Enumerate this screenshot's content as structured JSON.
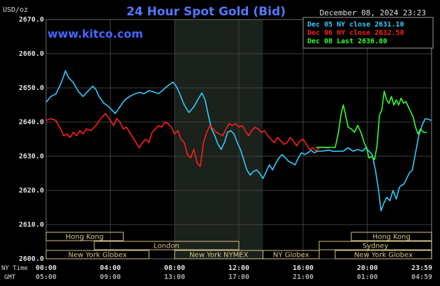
{
  "header": {
    "title": "24 Hour Spot Gold (Bid)",
    "watermark": "www.kitco.com",
    "y_unit": "USD/oz",
    "timestamp": "December 08, 2024 23:23"
  },
  "legend": [
    {
      "label": "Dec 05 NY close 2631.10",
      "color": "#33ccff"
    },
    {
      "label": "Dec 06 NY close 2632.50",
      "color": "#ff1f1f"
    },
    {
      "label": "Dec 08 Last 2636.80",
      "color": "#33ff33"
    }
  ],
  "time_rows": {
    "ny_label": "NY Time",
    "gmt_label": "GMT"
  },
  "sessions": [
    {
      "label": "Hong Kong",
      "start_hour": 0.0,
      "end_hour": 4.8
    },
    {
      "label": "London",
      "start_hour": 3.0,
      "end_hour": 12.0
    },
    {
      "label": "New York Globex",
      "start_hour": 0.0,
      "end_hour": 6.4
    },
    {
      "label": "New York NYMEX",
      "start_hour": 8.0,
      "end_hour": 13.5
    },
    {
      "label": "NY Globex",
      "start_hour": 13.5,
      "end_hour": 17.0
    },
    {
      "label": "Hong Kong",
      "start_hour": 19.0,
      "end_hour": 24.0
    },
    {
      "label": "Sydney",
      "start_hour": 17.0,
      "end_hour": 24.0
    },
    {
      "label": "New York Globex",
      "start_hour": 18.0,
      "end_hour": 24.0
    }
  ],
  "chart_data": {
    "type": "line",
    "title": "24 Hour Spot Gold (Bid)",
    "ylabel": "USD/oz",
    "xlim": [
      0,
      24
    ],
    "ylim": [
      2600,
      2670
    ],
    "grid": true,
    "legend_position": "top-right",
    "highlight_band": [
      8.0,
      13.5
    ],
    "x_ticks": [
      {
        "x": 0,
        "ny": "00:00",
        "gmt": "05:00"
      },
      {
        "x": 4,
        "ny": "04:00",
        "gmt": "09:00"
      },
      {
        "x": 8,
        "ny": "08:00",
        "gmt": "13:00"
      },
      {
        "x": 12,
        "ny": "12:00",
        "gmt": "17:00"
      },
      {
        "x": 16,
        "ny": "16:00",
        "gmt": "21:00"
      },
      {
        "x": 20,
        "ny": "20:00",
        "gmt": "01:00"
      },
      {
        "x": 23.98,
        "ny": "23:59",
        "gmt": "04:59"
      }
    ],
    "y_ticks": [
      "2600.0",
      "2610.0",
      "2620.0",
      "2630.0",
      "2640.0",
      "2650.0",
      "2660.0",
      "2670.0"
    ],
    "series": [
      {
        "name": "Dec 05 NY close 2631.10",
        "color": "#33ccff",
        "points": [
          [
            0,
            2645.8
          ],
          [
            0.3,
            2647.5
          ],
          [
            0.6,
            2648.2
          ],
          [
            0.9,
            2651
          ],
          [
            1.1,
            2653.5
          ],
          [
            1.2,
            2655
          ],
          [
            1.4,
            2653
          ],
          [
            1.7,
            2651.5
          ],
          [
            2,
            2649
          ],
          [
            2.3,
            2647.5
          ],
          [
            2.6,
            2649
          ],
          [
            2.9,
            2650.5
          ],
          [
            3.1,
            2649.5
          ],
          [
            3.3,
            2647.5
          ],
          [
            3.6,
            2645.5
          ],
          [
            3.9,
            2644.5
          ],
          [
            4.1,
            2643.5
          ],
          [
            4.3,
            2642.5
          ],
          [
            4.6,
            2644.5
          ],
          [
            4.9,
            2646.5
          ],
          [
            5.2,
            2647.5
          ],
          [
            5.5,
            2648.2
          ],
          [
            5.8,
            2648.7
          ],
          [
            6.1,
            2648.3
          ],
          [
            6.4,
            2649.2
          ],
          [
            6.7,
            2648.8
          ],
          [
            7,
            2648.3
          ],
          [
            7.3,
            2649.5
          ],
          [
            7.6,
            2650.7
          ],
          [
            7.9,
            2651.7
          ],
          [
            8.1,
            2650.5
          ],
          [
            8.3,
            2648.5
          ],
          [
            8.6,
            2645
          ],
          [
            8.9,
            2642.8
          ],
          [
            9.2,
            2644.5
          ],
          [
            9.5,
            2647
          ],
          [
            9.7,
            2648.5
          ],
          [
            9.9,
            2646.5
          ],
          [
            10.1,
            2642
          ],
          [
            10.3,
            2638
          ],
          [
            10.5,
            2636
          ],
          [
            10.7,
            2633.5
          ],
          [
            10.9,
            2632
          ],
          [
            11.1,
            2634
          ],
          [
            11.3,
            2637
          ],
          [
            11.5,
            2637.5
          ],
          [
            11.7,
            2636.5
          ],
          [
            11.9,
            2634
          ],
          [
            12.1,
            2632
          ],
          [
            12.3,
            2629
          ],
          [
            12.5,
            2626
          ],
          [
            12.7,
            2624.5
          ],
          [
            12.9,
            2625.5
          ],
          [
            13.1,
            2626
          ],
          [
            13.3,
            2625
          ],
          [
            13.5,
            2623.5
          ],
          [
            13.7,
            2625.5
          ],
          [
            13.9,
            2627.5
          ],
          [
            14.1,
            2626
          ],
          [
            14.3,
            2628
          ],
          [
            14.5,
            2629.5
          ],
          [
            14.7,
            2630.5
          ],
          [
            14.9,
            2629.5
          ],
          [
            15.1,
            2628.5
          ],
          [
            15.3,
            2628
          ],
          [
            15.5,
            2627.5
          ],
          [
            15.7,
            2629.5
          ],
          [
            15.9,
            2631
          ],
          [
            16.1,
            2630.5
          ],
          [
            16.3,
            2631
          ],
          [
            16.5,
            2631.8
          ],
          [
            16.7,
            2631
          ],
          [
            16.9,
            2631.5
          ],
          [
            17.2,
            2631.5
          ],
          [
            17.6,
            2631.8
          ],
          [
            17.9,
            2631.4
          ],
          [
            18.2,
            2631.5
          ],
          [
            18.5,
            2631.5
          ],
          [
            18.8,
            2632.5
          ],
          [
            19.1,
            2631.5
          ],
          [
            19.4,
            2632
          ],
          [
            19.7,
            2631.5
          ],
          [
            19.9,
            2632.5
          ],
          [
            20.1,
            2631.5
          ],
          [
            20.3,
            2630.5
          ],
          [
            20.5,
            2626
          ],
          [
            20.7,
            2620
          ],
          [
            20.85,
            2614
          ],
          [
            21,
            2616
          ],
          [
            21.2,
            2618
          ],
          [
            21.4,
            2617
          ],
          [
            21.6,
            2620
          ],
          [
            21.8,
            2617.5
          ],
          [
            22,
            2621
          ],
          [
            22.3,
            2622
          ],
          [
            22.6,
            2625
          ],
          [
            22.8,
            2626
          ],
          [
            23,
            2631
          ],
          [
            23.2,
            2636
          ],
          [
            23.4,
            2639
          ],
          [
            23.6,
            2641
          ],
          [
            23.8,
            2640.8
          ],
          [
            23.98,
            2640.5
          ]
        ]
      },
      {
        "name": "Dec 06 NY close 2632.50",
        "color": "#ff1f1f",
        "points": [
          [
            0,
            2640.5
          ],
          [
            0.3,
            2641
          ],
          [
            0.6,
            2640.5
          ],
          [
            0.9,
            2638
          ],
          [
            1.1,
            2636
          ],
          [
            1.3,
            2636.5
          ],
          [
            1.5,
            2635.5
          ],
          [
            1.7,
            2637
          ],
          [
            1.9,
            2636
          ],
          [
            2.1,
            2637.5
          ],
          [
            2.3,
            2636.5
          ],
          [
            2.5,
            2638
          ],
          [
            2.8,
            2637.5
          ],
          [
            3.1,
            2639
          ],
          [
            3.4,
            2641
          ],
          [
            3.7,
            2642.5
          ],
          [
            4,
            2640.5
          ],
          [
            4.2,
            2639
          ],
          [
            4.4,
            2641
          ],
          [
            4.6,
            2640
          ],
          [
            4.8,
            2638
          ],
          [
            5,
            2638.5
          ],
          [
            5.2,
            2637
          ],
          [
            5.4,
            2635.5
          ],
          [
            5.6,
            2634
          ],
          [
            5.8,
            2632.5
          ],
          [
            6,
            2634
          ],
          [
            6.2,
            2635
          ],
          [
            6.4,
            2634
          ],
          [
            6.6,
            2637
          ],
          [
            6.8,
            2638
          ],
          [
            7,
            2639
          ],
          [
            7.2,
            2638.5
          ],
          [
            7.4,
            2640
          ],
          [
            7.6,
            2639.5
          ],
          [
            7.8,
            2638.5
          ],
          [
            8,
            2636.5
          ],
          [
            8.2,
            2637.5
          ],
          [
            8.4,
            2635
          ],
          [
            8.6,
            2634
          ],
          [
            8.8,
            2630.5
          ],
          [
            9,
            2629.5
          ],
          [
            9.2,
            2632
          ],
          [
            9.4,
            2628
          ],
          [
            9.6,
            2627
          ],
          [
            9.8,
            2634
          ],
          [
            10,
            2637
          ],
          [
            10.2,
            2639
          ],
          [
            10.4,
            2638
          ],
          [
            10.6,
            2637
          ],
          [
            10.8,
            2636.5
          ],
          [
            11,
            2636
          ],
          [
            11.2,
            2638
          ],
          [
            11.4,
            2639.5
          ],
          [
            11.6,
            2639
          ],
          [
            11.8,
            2639.5
          ],
          [
            12,
            2638.5
          ],
          [
            12.2,
            2639
          ],
          [
            12.4,
            2637.5
          ],
          [
            12.6,
            2636
          ],
          [
            12.8,
            2637.5
          ],
          [
            13,
            2638.5
          ],
          [
            13.2,
            2638
          ],
          [
            13.4,
            2637
          ],
          [
            13.6,
            2637.5
          ],
          [
            13.8,
            2636
          ],
          [
            14,
            2635
          ],
          [
            14.2,
            2634
          ],
          [
            14.4,
            2635.5
          ],
          [
            14.6,
            2634.5
          ],
          [
            14.8,
            2633.5
          ],
          [
            15,
            2634
          ],
          [
            15.2,
            2635.5
          ],
          [
            15.4,
            2634.5
          ],
          [
            15.6,
            2633
          ],
          [
            15.8,
            2634.5
          ],
          [
            16,
            2635
          ],
          [
            16.2,
            2633.5
          ],
          [
            16.4,
            2632
          ],
          [
            16.6,
            2632.5
          ],
          [
            16.8,
            2631.5
          ],
          [
            17,
            2632.5
          ],
          [
            17.2,
            2632.7
          ],
          [
            17.4,
            2632.5
          ],
          [
            17.6,
            2632.5
          ]
        ]
      },
      {
        "name": "Dec 08 Last 2636.80",
        "color": "#33ff33",
        "points": [
          [
            16.8,
            2632.6
          ],
          [
            17.5,
            2632.6
          ],
          [
            18,
            2632.6
          ],
          [
            18.2,
            2637
          ],
          [
            18.35,
            2642
          ],
          [
            18.5,
            2645
          ],
          [
            18.65,
            2642
          ],
          [
            18.8,
            2638.5
          ],
          [
            19,
            2638
          ],
          [
            19.2,
            2637
          ],
          [
            19.4,
            2639
          ],
          [
            19.6,
            2637
          ],
          [
            19.8,
            2634
          ],
          [
            19.95,
            2632.5
          ],
          [
            20.1,
            2629.5
          ],
          [
            20.3,
            2630
          ],
          [
            20.45,
            2629
          ],
          [
            20.6,
            2633
          ],
          [
            20.75,
            2642
          ],
          [
            20.9,
            2643.5
          ],
          [
            21.05,
            2649
          ],
          [
            21.2,
            2646.5
          ],
          [
            21.35,
            2645.5
          ],
          [
            21.5,
            2647.5
          ],
          [
            21.65,
            2645
          ],
          [
            21.8,
            2646.5
          ],
          [
            21.95,
            2645
          ],
          [
            22.1,
            2647
          ],
          [
            22.25,
            2645.5
          ],
          [
            22.4,
            2646
          ],
          [
            22.55,
            2644.5
          ],
          [
            22.7,
            2643
          ],
          [
            22.85,
            2641.5
          ],
          [
            23,
            2638.5
          ],
          [
            23.15,
            2636.5
          ],
          [
            23.3,
            2638
          ],
          [
            23.5,
            2637
          ],
          [
            23.7,
            2637
          ]
        ]
      }
    ]
  }
}
